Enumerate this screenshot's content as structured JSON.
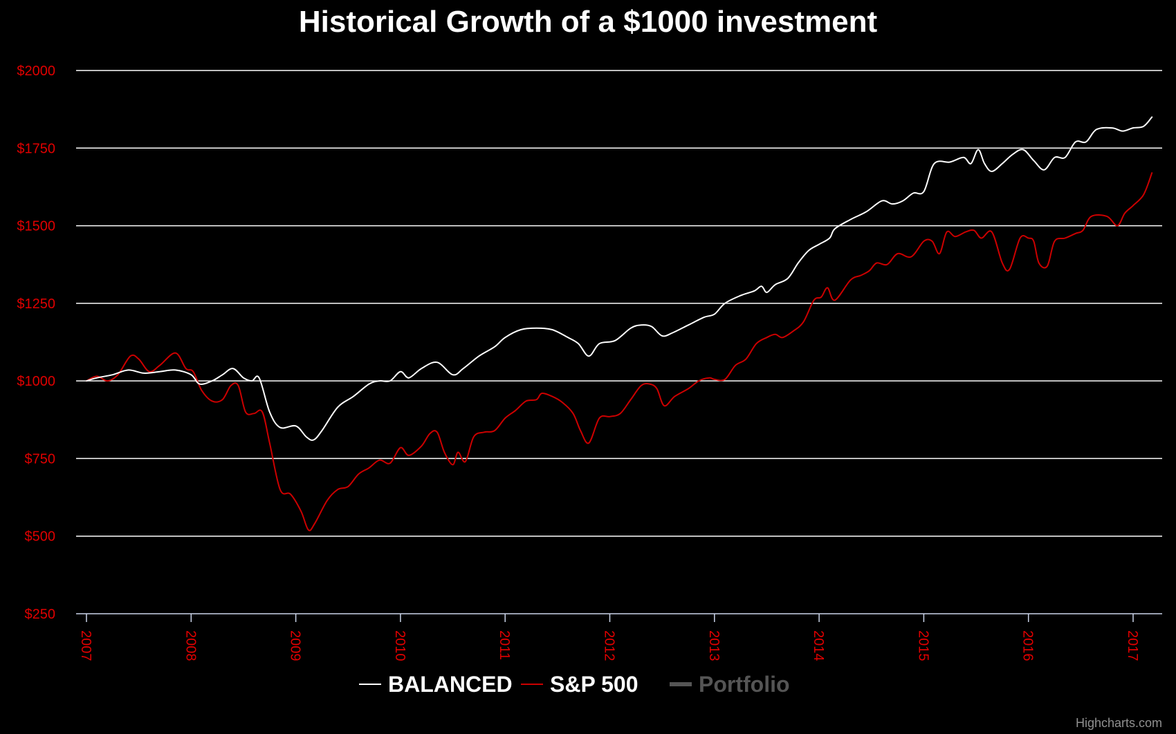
{
  "chart_data": {
    "type": "line",
    "title": "Historical Growth of a $1000 investment",
    "xlabel": "",
    "ylabel": "",
    "xlim": [
      2007.0,
      2017.3
    ],
    "ylim": [
      250,
      2000
    ],
    "y_ticks": [
      {
        "value": 250,
        "label": "$250"
      },
      {
        "value": 500,
        "label": "$500"
      },
      {
        "value": 750,
        "label": "$750"
      },
      {
        "value": 1000,
        "label": "$1000"
      },
      {
        "value": 1250,
        "label": "$1250"
      },
      {
        "value": 1500,
        "label": "$1500"
      },
      {
        "value": 1750,
        "label": "$1750"
      },
      {
        "value": 2000,
        "label": "$2000"
      }
    ],
    "x_ticks": [
      {
        "value": 2007,
        "label": "2007"
      },
      {
        "value": 2008,
        "label": "2008"
      },
      {
        "value": 2009,
        "label": "2009"
      },
      {
        "value": 2010,
        "label": "2010"
      },
      {
        "value": 2011,
        "label": "2011"
      },
      {
        "value": 2012,
        "label": "2012"
      },
      {
        "value": 2013,
        "label": "2013"
      },
      {
        "value": 2014,
        "label": "2014"
      },
      {
        "value": 2015,
        "label": "2015"
      },
      {
        "value": 2016,
        "label": "2016"
      },
      {
        "value": 2017,
        "label": "2017"
      }
    ],
    "grid": true,
    "legend_position": "bottom-center",
    "series": [
      {
        "name": "BALANCED",
        "color": "#ffffff",
        "x": [
          2007.0,
          2007.1,
          2007.25,
          2007.4,
          2007.55,
          2007.7,
          2007.85,
          2008.0,
          2008.08,
          2008.2,
          2008.3,
          2008.4,
          2008.5,
          2008.58,
          2008.65,
          2008.75,
          2008.85,
          2009.0,
          2009.1,
          2009.17,
          2009.25,
          2009.4,
          2009.55,
          2009.7,
          2009.8,
          2009.9,
          2010.0,
          2010.08,
          2010.2,
          2010.35,
          2010.5,
          2010.6,
          2010.75,
          2010.9,
          2011.0,
          2011.15,
          2011.3,
          2011.45,
          2011.6,
          2011.7,
          2011.8,
          2011.9,
          2012.05,
          2012.2,
          2012.3,
          2012.4,
          2012.5,
          2012.6,
          2012.75,
          2012.9,
          2013.0,
          2013.1,
          2013.25,
          2013.38,
          2013.45,
          2013.5,
          2013.58,
          2013.7,
          2013.8,
          2013.9,
          2014.0,
          2014.1,
          2014.15,
          2014.3,
          2014.45,
          2014.6,
          2014.7,
          2014.8,
          2014.9,
          2015.0,
          2015.1,
          2015.25,
          2015.38,
          2015.45,
          2015.52,
          2015.58,
          2015.65,
          2015.75,
          2015.85,
          2015.95,
          2016.05,
          2016.15,
          2016.25,
          2016.35,
          2016.45,
          2016.55,
          2016.65,
          2016.8,
          2016.9,
          2017.0,
          2017.1,
          2017.18
        ],
        "values": [
          1000,
          1010,
          1020,
          1035,
          1025,
          1030,
          1035,
          1020,
          990,
          1000,
          1020,
          1040,
          1010,
          1000,
          1010,
          900,
          850,
          855,
          820,
          810,
          840,
          915,
          950,
          990,
          1000,
          1000,
          1030,
          1010,
          1040,
          1060,
          1020,
          1040,
          1080,
          1110,
          1140,
          1165,
          1170,
          1165,
          1140,
          1120,
          1080,
          1120,
          1130,
          1170,
          1180,
          1175,
          1145,
          1155,
          1180,
          1205,
          1215,
          1250,
          1275,
          1290,
          1305,
          1285,
          1310,
          1330,
          1380,
          1420,
          1440,
          1460,
          1490,
          1520,
          1545,
          1580,
          1570,
          1580,
          1605,
          1610,
          1700,
          1705,
          1720,
          1700,
          1745,
          1700,
          1675,
          1700,
          1730,
          1745,
          1710,
          1680,
          1720,
          1720,
          1770,
          1770,
          1810,
          1815,
          1805,
          1815,
          1820,
          1850
        ]
      },
      {
        "name": "S&P 500",
        "color": "#cc0000",
        "x": [
          2007.0,
          2007.1,
          2007.2,
          2007.3,
          2007.42,
          2007.5,
          2007.6,
          2007.7,
          2007.85,
          2007.95,
          2008.02,
          2008.1,
          2008.2,
          2008.3,
          2008.38,
          2008.45,
          2008.52,
          2008.6,
          2008.68,
          2008.75,
          2008.85,
          2008.95,
          2009.05,
          2009.12,
          2009.18,
          2009.3,
          2009.4,
          2009.5,
          2009.6,
          2009.7,
          2009.8,
          2009.9,
          2010.0,
          2010.08,
          2010.2,
          2010.28,
          2010.35,
          2010.42,
          2010.5,
          2010.55,
          2010.62,
          2010.7,
          2010.8,
          2010.9,
          2011.0,
          2011.1,
          2011.2,
          2011.3,
          2011.35,
          2011.45,
          2011.55,
          2011.65,
          2011.72,
          2011.8,
          2011.9,
          2012.0,
          2012.1,
          2012.2,
          2012.3,
          2012.38,
          2012.45,
          2012.52,
          2012.62,
          2012.75,
          2012.85,
          2012.95,
          2013.0,
          2013.1,
          2013.2,
          2013.3,
          2013.4,
          2013.5,
          2013.58,
          2013.65,
          2013.75,
          2013.85,
          2013.95,
          2014.02,
          2014.08,
          2014.15,
          2014.3,
          2014.4,
          2014.48,
          2014.55,
          2014.65,
          2014.75,
          2014.88,
          2015.0,
          2015.08,
          2015.15,
          2015.22,
          2015.3,
          2015.4,
          2015.48,
          2015.55,
          2015.65,
          2015.75,
          2015.82,
          2015.92,
          2016.0,
          2016.05,
          2016.1,
          2016.18,
          2016.25,
          2016.35,
          2016.45,
          2016.52,
          2016.6,
          2016.75,
          2016.85,
          2016.92,
          2017.0,
          2017.1,
          2017.18
        ],
        "values": [
          1000,
          1015,
          1000,
          1020,
          1080,
          1070,
          1030,
          1050,
          1090,
          1040,
          1030,
          970,
          935,
          940,
          985,
          985,
          900,
          895,
          900,
          800,
          650,
          635,
          580,
          520,
          540,
          615,
          650,
          660,
          700,
          720,
          745,
          735,
          785,
          760,
          790,
          830,
          835,
          770,
          730,
          770,
          740,
          820,
          835,
          840,
          880,
          905,
          935,
          940,
          960,
          950,
          930,
          895,
          840,
          800,
          880,
          885,
          895,
          940,
          985,
          990,
          975,
          920,
          950,
          975,
          1000,
          1010,
          1005,
          1005,
          1050,
          1070,
          1120,
          1140,
          1150,
          1140,
          1160,
          1190,
          1260,
          1270,
          1300,
          1260,
          1325,
          1340,
          1355,
          1380,
          1375,
          1410,
          1400,
          1450,
          1450,
          1410,
          1480,
          1465,
          1480,
          1485,
          1460,
          1480,
          1380,
          1360,
          1460,
          1460,
          1450,
          1380,
          1370,
          1450,
          1460,
          1475,
          1485,
          1530,
          1530,
          1500,
          1540,
          1565,
          1600,
          1670
        ]
      },
      {
        "name": "Portfolio",
        "color": "#555555",
        "x": [],
        "values": []
      }
    ]
  },
  "credit": "Highcharts.com"
}
